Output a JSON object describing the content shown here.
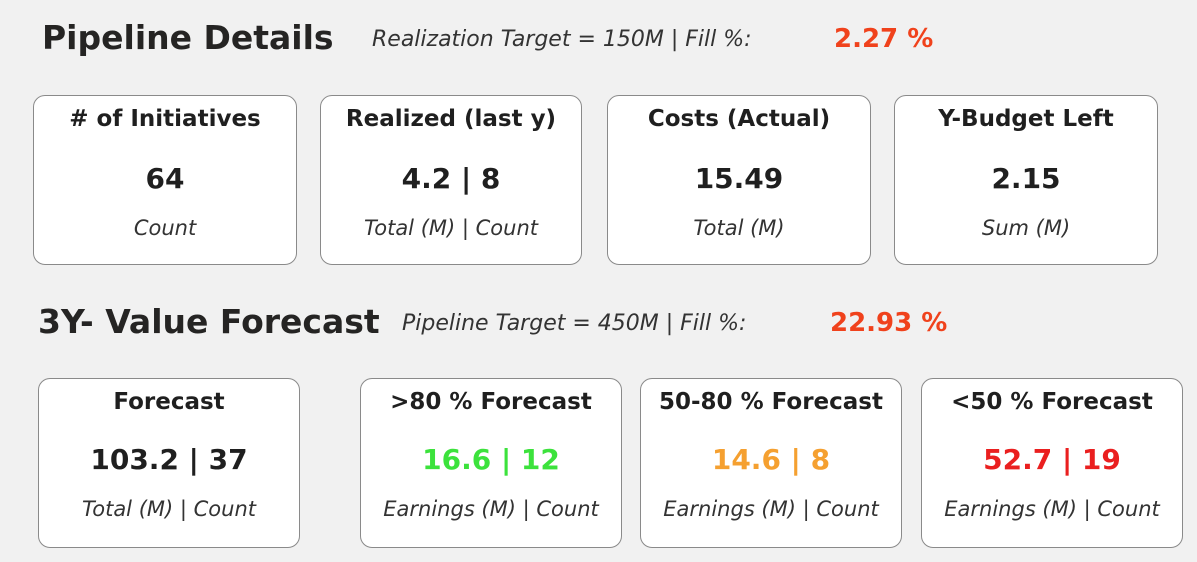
{
  "pipeline": {
    "title": "Pipeline Details",
    "subtitle": "Realization Target = 150M | Fill %:",
    "fill_pct": "2.27 %",
    "fill_color": "#f0421c",
    "cards": [
      {
        "label": "# of Initiatives",
        "value": "64",
        "unit": "Count"
      },
      {
        "label": "Realized (last y)",
        "value": "4.2 | 8",
        "unit": "Total (M) | Count"
      },
      {
        "label": "Costs (Actual)",
        "value": "15.49",
        "unit": "Total (M)"
      },
      {
        "label": "Y-Budget Left",
        "value": "2.15",
        "unit": "Sum (M)"
      }
    ]
  },
  "forecast": {
    "title": "3Y- Value Forecast",
    "subtitle": "Pipeline Target = 450M | Fill %:",
    "fill_pct": "22.93 %",
    "fill_color": "#f0421c",
    "cards": [
      {
        "label": "Forecast",
        "value": "103.2 | 37",
        "unit": "Total (M) | Count",
        "color": "#1f1f1f"
      },
      {
        "label": ">80 % Forecast",
        "value": "16.6 | 12",
        "unit": "Earnings (M) | Count",
        "color": "#3ce23c"
      },
      {
        "label": "50-80 % Forecast",
        "value": "14.6 | 8",
        "unit": "Earnings (M) | Count",
        "color": "#f5a030"
      },
      {
        "label": "<50 % Forecast",
        "value": "52.7 | 19",
        "unit": "Earnings (M) | Count",
        "color": "#ea1f1f"
      }
    ]
  }
}
